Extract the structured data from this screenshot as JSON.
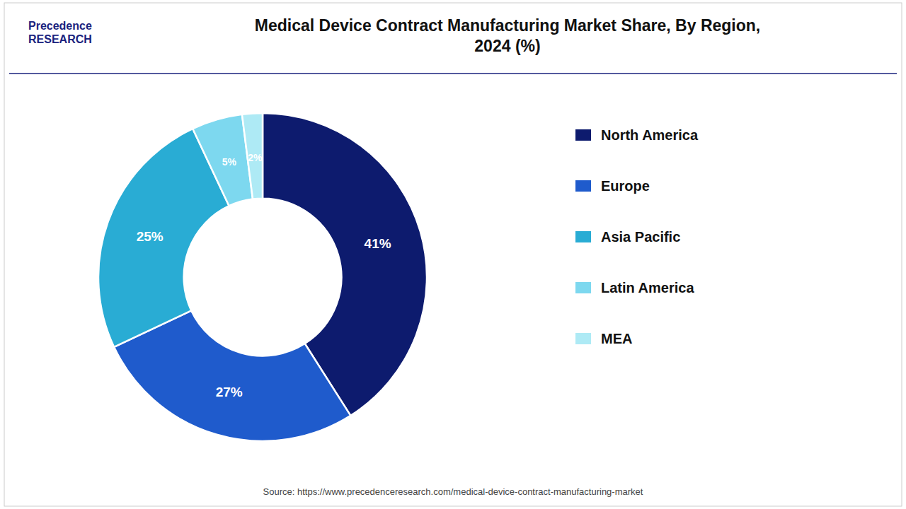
{
  "chart_data": {
    "type": "pie",
    "title": "Medical Device Contract Manufacturing Market Share, By Region,\n2024 (%)",
    "categories": [
      "North America",
      "Europe",
      "Asia Pacific",
      "Latin America",
      "MEA"
    ],
    "values": [
      41,
      27,
      25,
      5,
      2
    ],
    "value_labels": [
      "41%",
      "27%",
      "25%",
      "5%",
      "2%"
    ],
    "colors": [
      "#0d1b6e",
      "#1f5bcc",
      "#29acd4",
      "#7dd8ef",
      "#aeeaf5"
    ],
    "data_labels": true,
    "legend": "right",
    "annotations": [
      "Precedence\nRESEARCH",
      "Source: https://www.precedenceresearch.com/medical-device-contract-manufacturing-market"
    ]
  }
}
